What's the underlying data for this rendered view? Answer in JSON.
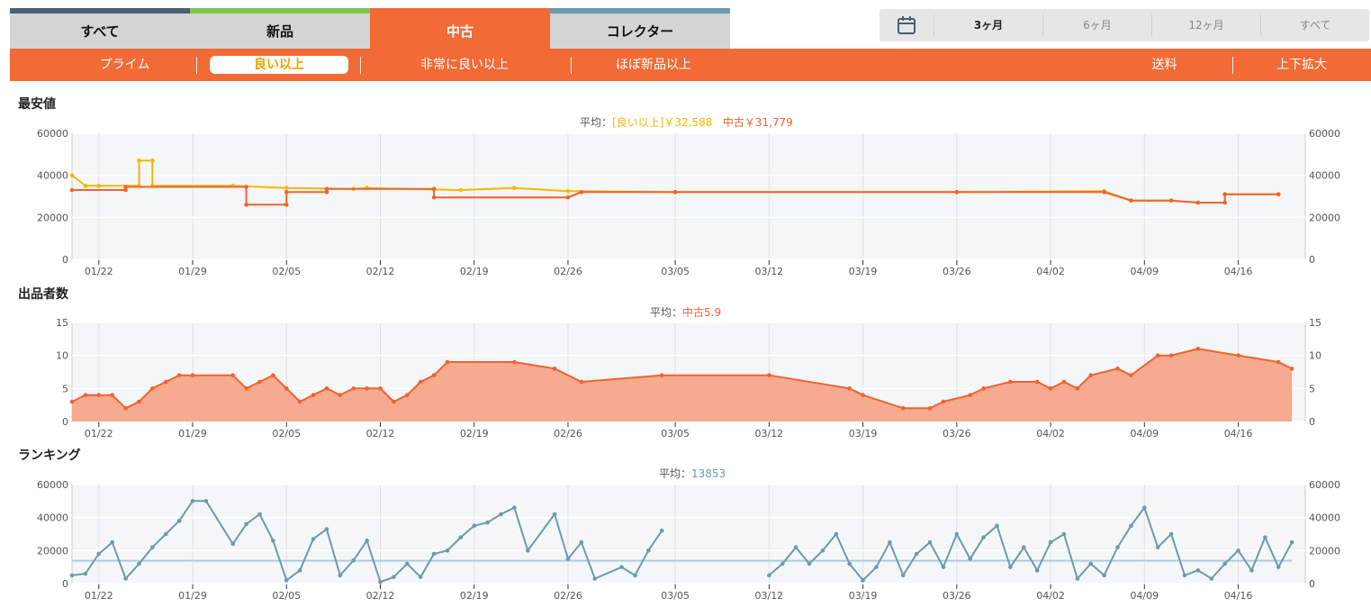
{
  "tabs": [
    {
      "label": "すべて",
      "color": "#4a5f72",
      "active": false
    },
    {
      "label": "新品",
      "color": "#7cc64d",
      "active": false
    },
    {
      "label": "中古",
      "color": "#f26a35",
      "active": true
    },
    {
      "label": "コレクター",
      "color": "#6e9aae",
      "active": false
    }
  ],
  "period": {
    "icon": "calendar-icon",
    "options": [
      "3ヶ月",
      "6ヶ月",
      "12ヶ月",
      "すべて"
    ],
    "selected": "3ヶ月"
  },
  "subnav": {
    "items": [
      "プライム",
      "良い以上",
      "非常に良い以上",
      "ほぼ新品以上"
    ],
    "selected": "良い以上",
    "right_items": [
      "送料",
      "上下拡大"
    ]
  },
  "x_ticks": [
    "01/22",
    "01/29",
    "02/05",
    "02/12",
    "02/19",
    "02/26",
    "03/05",
    "03/12",
    "03/19",
    "03/26",
    "04/02",
    "04/09",
    "04/16"
  ],
  "colors": {
    "yoi": "#f5b800",
    "used": "#f0632d",
    "rank": "#6e9aae",
    "rank_avg": "#a9cde6",
    "area": "#f5a58a"
  },
  "sections": {
    "price": {
      "title": "最安値",
      "avg_prefix": "平均：",
      "avg_a": "[良い以上]￥32,588",
      "avg_b": "中古￥31,779"
    },
    "sellers": {
      "title": "出品者数",
      "avg_prefix": "平均：",
      "avg_a": "中古5.9"
    },
    "rank": {
      "title": "ランキング",
      "avg_prefix": "平均：",
      "avg_a": "13853"
    }
  },
  "chart_data": [
    {
      "type": "line",
      "title": "最安値",
      "ylim": [
        0,
        60000
      ],
      "yticks": [
        0,
        20000,
        40000,
        60000
      ],
      "series": [
        {
          "name": "[良い以上]",
          "color": "#f5b800",
          "x": [
            "01/20",
            "01/21",
            "01/22",
            "01/25",
            "01/25",
            "01/26",
            "01/26",
            "02/01",
            "02/05",
            "02/10",
            "02/11",
            "02/18",
            "02/22",
            "02/26",
            "03/05",
            "03/26",
            "04/06",
            "04/08",
            "04/11",
            "04/13",
            "04/15",
            "04/15",
            "04/19"
          ],
          "y": [
            40000,
            35000,
            35000,
            35000,
            47000,
            47000,
            35000,
            35000,
            34000,
            33500,
            34000,
            33000,
            34000,
            32500,
            32000,
            32000,
            32500,
            28000,
            28000,
            27000,
            27000,
            31000,
            31000
          ]
        },
        {
          "name": "中古",
          "color": "#f0632d",
          "x": [
            "01/20",
            "01/24",
            "01/24",
            "02/02",
            "02/02",
            "02/05",
            "02/05",
            "02/08",
            "02/08",
            "02/16",
            "02/16",
            "02/26",
            "02/27",
            "03/05",
            "03/26",
            "04/06",
            "04/08",
            "04/11",
            "04/13",
            "04/15",
            "04/15",
            "04/19"
          ],
          "y": [
            33000,
            33000,
            34500,
            34500,
            26000,
            26000,
            32000,
            32000,
            33500,
            33500,
            29500,
            29500,
            32000,
            32000,
            32000,
            32000,
            28000,
            28000,
            27000,
            27000,
            31000,
            31000
          ]
        }
      ]
    },
    {
      "type": "area",
      "title": "出品者数",
      "ylim": [
        0,
        15
      ],
      "yticks": [
        0,
        5,
        10,
        15
      ],
      "series": [
        {
          "name": "中古",
          "color": "#f0632d",
          "x": [
            "01/20",
            "01/21",
            "01/22",
            "01/23",
            "01/24",
            "01/25",
            "01/26",
            "01/27",
            "01/28",
            "01/29",
            "02/01",
            "02/02",
            "02/03",
            "02/04",
            "02/05",
            "02/06",
            "02/07",
            "02/08",
            "02/09",
            "02/10",
            "02/11",
            "02/12",
            "02/13",
            "02/14",
            "02/15",
            "02/16",
            "02/17",
            "02/22",
            "02/25",
            "02/27",
            "03/04",
            "03/12",
            "03/18",
            "03/19",
            "03/22",
            "03/24",
            "03/25",
            "03/27",
            "03/28",
            "03/30",
            "04/01",
            "04/02",
            "04/03",
            "04/04",
            "04/05",
            "04/07",
            "04/08",
            "04/10",
            "04/11",
            "04/13",
            "04/16",
            "04/19",
            "04/20"
          ],
          "y": [
            3,
            4,
            4,
            4,
            2,
            3,
            5,
            6,
            7,
            7,
            7,
            5,
            6,
            7,
            5,
            3,
            4,
            5,
            4,
            5,
            5,
            5,
            3,
            4,
            6,
            7,
            9,
            9,
            8,
            6,
            7,
            7,
            5,
            4,
            2,
            2,
            3,
            4,
            5,
            6,
            6,
            5,
            6,
            5,
            7,
            8,
            7,
            10,
            10,
            11,
            10,
            9,
            8
          ]
        }
      ]
    },
    {
      "type": "line",
      "title": "ランキング",
      "ylim": [
        0,
        60000
      ],
      "yticks": [
        0,
        20000,
        40000,
        60000
      ],
      "avg_line": 13853,
      "series": [
        {
          "name": "ランキング",
          "color": "#6e9aae",
          "x": [
            "01/20",
            "01/21",
            "01/22",
            "01/23",
            "01/24",
            "01/25",
            "01/26",
            "01/27",
            "01/28",
            "01/29",
            "01/30",
            "02/01",
            "02/02",
            "02/03",
            "02/04",
            "02/05",
            "02/06",
            "02/07",
            "02/08",
            "02/09",
            "02/10",
            "02/11",
            "02/12",
            "02/13",
            "02/14",
            "02/15",
            "02/16",
            "02/17",
            "02/18",
            "02/19",
            "02/20",
            "02/21",
            "02/22",
            "02/23",
            "02/25",
            "02/26",
            "02/27",
            "02/28",
            "03/01",
            "03/02",
            "03/03",
            "03/04"
          ],
          "y": [
            5000,
            6000,
            18000,
            25000,
            3000,
            12000,
            22000,
            30000,
            38000,
            50000,
            50000,
            24000,
            36000,
            42000,
            26000,
            2000,
            8000,
            27000,
            33000,
            5000,
            14000,
            26000,
            1000,
            4000,
            12000,
            4000,
            18000,
            20000,
            28000,
            35000,
            37000,
            42000,
            46000,
            20000,
            42000,
            15000,
            25000,
            3000,
            10000,
            5000,
            20000,
            32000
          ]
        },
        {
          "name": "ランキング",
          "color": "#6e9aae",
          "x": [
            "03/12",
            "03/13",
            "03/14",
            "03/15",
            "03/16",
            "03/17",
            "03/18",
            "03/19",
            "03/20",
            "03/21",
            "03/22",
            "03/23",
            "03/24",
            "03/25",
            "03/26",
            "03/27",
            "03/28",
            "03/29",
            "03/30",
            "03/31",
            "04/01",
            "04/02",
            "04/03",
            "04/04",
            "04/05",
            "04/06",
            "04/07",
            "04/08",
            "04/09",
            "04/10",
            "04/11",
            "04/12",
            "04/13",
            "04/14",
            "04/15",
            "04/16",
            "04/17",
            "04/18",
            "04/19",
            "04/20"
          ],
          "y": [
            5000,
            12000,
            22000,
            12000,
            20000,
            30000,
            12000,
            2000,
            10000,
            25000,
            5000,
            18000,
            25000,
            10000,
            30000,
            15000,
            28000,
            35000,
            10000,
            22000,
            8000,
            25000,
            30000,
            3000,
            12000,
            5000,
            22000,
            35000,
            46000,
            22000,
            30000,
            5000,
            8000,
            3000,
            12000,
            20000,
            8000,
            28000,
            10000,
            25000
          ]
        }
      ]
    }
  ]
}
